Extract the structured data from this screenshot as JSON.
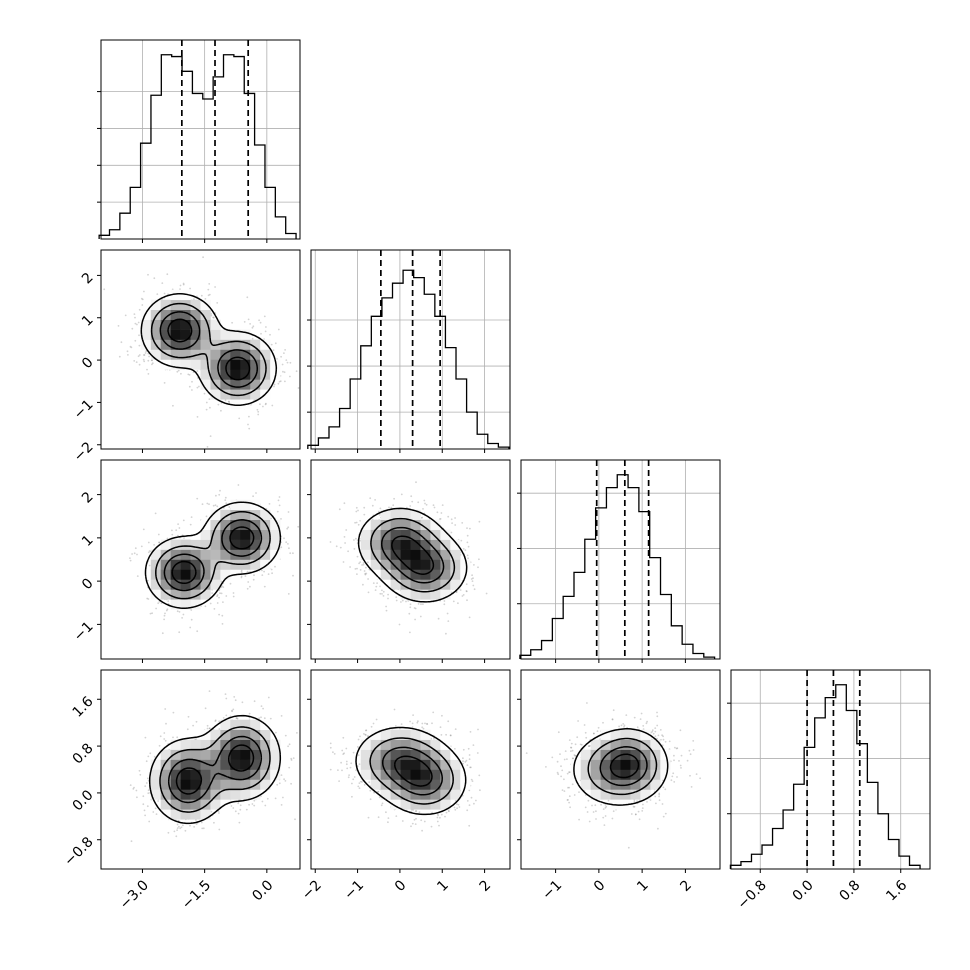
{
  "chart_data": {
    "type": "corner",
    "n_params": 4,
    "grid": true,
    "params": [
      {
        "index": 0,
        "range": [
          -4.0,
          0.8
        ],
        "ticks": [
          -3.0,
          -1.5,
          0.0
        ],
        "tick_labels": [
          "−3.0",
          "−1.5",
          "0.0"
        ],
        "quantiles": [
          -2.05,
          -1.25,
          -0.45
        ],
        "marginal": {
          "bins": [
            -3.92,
            -3.67,
            -3.42,
            -3.17,
            -2.92,
            -2.67,
            -2.42,
            -2.17,
            -1.92,
            -1.67,
            -1.42,
            -1.17,
            -0.92,
            -0.67,
            -0.42,
            -0.17,
            0.08,
            0.33,
            0.58
          ],
          "counts": [
            0.02,
            0.05,
            0.14,
            0.28,
            0.52,
            0.78,
            1.0,
            0.99,
            0.91,
            0.79,
            0.76,
            0.88,
            1.0,
            0.99,
            0.79,
            0.51,
            0.28,
            0.12,
            0.03
          ],
          "grid_levels": [
            0.2,
            0.4,
            0.6,
            0.8
          ]
        }
      },
      {
        "index": 1,
        "range": [
          -2.1,
          2.6
        ],
        "ticks": [
          -2,
          -1,
          0,
          1,
          2
        ],
        "tick_labels": [
          "−2",
          "−1",
          "0",
          "1",
          "2"
        ],
        "quantiles": [
          -0.45,
          0.3,
          0.95
        ],
        "marginal": {
          "bins": [
            -2.05,
            -1.8,
            -1.55,
            -1.3,
            -1.05,
            -0.8,
            -0.55,
            -0.3,
            -0.05,
            0.2,
            0.45,
            0.7,
            0.95,
            1.2,
            1.45,
            1.7,
            1.95,
            2.2,
            2.45
          ],
          "counts": [
            0.02,
            0.06,
            0.12,
            0.22,
            0.38,
            0.56,
            0.72,
            0.82,
            0.9,
            0.97,
            0.93,
            0.84,
            0.72,
            0.55,
            0.38,
            0.2,
            0.08,
            0.03,
            0.01
          ],
          "grid_levels": [
            0.2,
            0.45,
            0.7
          ]
        }
      },
      {
        "index": 2,
        "range": [
          -1.8,
          2.8
        ],
        "ticks": [
          -1,
          0,
          1,
          2
        ],
        "tick_labels": [
          "−1",
          "0",
          "1",
          "2"
        ],
        "quantiles": [
          -0.05,
          0.6,
          1.15
        ],
        "marginal": {
          "bins": [
            -1.7,
            -1.45,
            -1.2,
            -0.95,
            -0.7,
            -0.45,
            -0.2,
            0.05,
            0.3,
            0.55,
            0.8,
            1.05,
            1.3,
            1.55,
            1.8,
            2.05,
            2.3,
            2.55
          ],
          "counts": [
            0.02,
            0.05,
            0.1,
            0.22,
            0.34,
            0.47,
            0.65,
            0.82,
            0.93,
            1.0,
            0.93,
            0.8,
            0.55,
            0.35,
            0.18,
            0.08,
            0.03,
            0.01
          ],
          "grid_levels": [
            0.3,
            0.6,
            0.9
          ]
        }
      },
      {
        "index": 3,
        "range": [
          -1.3,
          2.1
        ],
        "ticks": [
          -0.8,
          0.0,
          0.8,
          1.6
        ],
        "tick_labels": [
          "−0.8",
          "0.0",
          "0.8",
          "1.6"
        ],
        "quantiles": [
          0.0,
          0.45,
          0.9
        ],
        "marginal": {
          "bins": [
            -1.22,
            -1.04,
            -0.86,
            -0.68,
            -0.5,
            -0.32,
            -0.14,
            0.04,
            0.22,
            0.4,
            0.58,
            0.76,
            0.94,
            1.12,
            1.3,
            1.48,
            1.66,
            1.84
          ],
          "counts": [
            0.02,
            0.04,
            0.08,
            0.13,
            0.22,
            0.32,
            0.46,
            0.66,
            0.82,
            0.93,
            1.0,
            0.86,
            0.68,
            0.47,
            0.3,
            0.16,
            0.07,
            0.02
          ],
          "grid_levels": [
            0.3,
            0.6,
            0.9
          ]
        }
      }
    ],
    "pairs": [
      {
        "x": 0,
        "y": 1,
        "modes": [
          {
            "cx": -2.1,
            "cy": 0.7,
            "sx": 0.45,
            "sy": 0.42,
            "w": 1.0
          },
          {
            "cx": -0.7,
            "cy": -0.2,
            "sx": 0.45,
            "sy": 0.42,
            "w": 1.0
          }
        ],
        "ylim": [
          -2.1,
          2.6
        ],
        "yticks": [
          -2,
          -1,
          0,
          1,
          2
        ],
        "ytick_labels": [
          "−2",
          "−1",
          "0",
          "1",
          "2"
        ]
      },
      {
        "x": 0,
        "y": 2,
        "modes": [
          {
            "cx": -2.0,
            "cy": 0.2,
            "sx": 0.45,
            "sy": 0.4,
            "w": 1.0
          },
          {
            "cx": -0.6,
            "cy": 1.0,
            "sx": 0.45,
            "sy": 0.4,
            "w": 1.0
          }
        ],
        "ylim": [
          -1.8,
          2.8
        ],
        "yticks": [
          -1,
          0,
          1,
          2
        ],
        "ytick_labels": [
          "−1",
          "0",
          "1",
          "2"
        ]
      },
      {
        "x": 1,
        "y": 2,
        "modes": [
          {
            "cx": 0.0,
            "cy": 0.9,
            "sx": 0.5,
            "sy": 0.4,
            "w": 1.0
          },
          {
            "cx": 0.6,
            "cy": 0.3,
            "sx": 0.5,
            "sy": 0.4,
            "w": 1.0
          }
        ],
        "ylim": [
          -1.8,
          2.8
        ]
      },
      {
        "x": 0,
        "y": 3,
        "modes": [
          {
            "cx": -1.9,
            "cy": 0.2,
            "sx": 0.45,
            "sy": 0.35,
            "w": 1.0
          },
          {
            "cx": -0.6,
            "cy": 0.6,
            "sx": 0.45,
            "sy": 0.35,
            "w": 1.0
          }
        ],
        "ylim": [
          -1.3,
          2.1
        ],
        "yticks": [
          -0.8,
          0.0,
          0.8,
          1.6
        ],
        "ytick_labels": [
          "−0.8",
          "0.0",
          "0.8",
          "1.6"
        ]
      },
      {
        "x": 1,
        "y": 3,
        "modes": [
          {
            "cx": 0.0,
            "cy": 0.55,
            "sx": 0.55,
            "sy": 0.3,
            "w": 1.0
          },
          {
            "cx": 0.6,
            "cy": 0.2,
            "sx": 0.5,
            "sy": 0.3,
            "w": 1.0
          }
        ],
        "ylim": [
          -1.3,
          2.1
        ]
      },
      {
        "x": 2,
        "y": 3,
        "modes": [
          {
            "cx": 0.45,
            "cy": 0.4,
            "sx": 0.55,
            "sy": 0.32,
            "w": 1.0
          },
          {
            "cx": 0.75,
            "cy": 0.55,
            "sx": 0.4,
            "sy": 0.28,
            "w": 0.6
          }
        ],
        "ylim": [
          -1.3,
          2.1
        ]
      }
    ],
    "colors": {
      "density_dark": "#000000",
      "density_light": "#ffffff",
      "points": "#808080",
      "lines": "#000000",
      "grid": "#b0b0b0"
    }
  }
}
